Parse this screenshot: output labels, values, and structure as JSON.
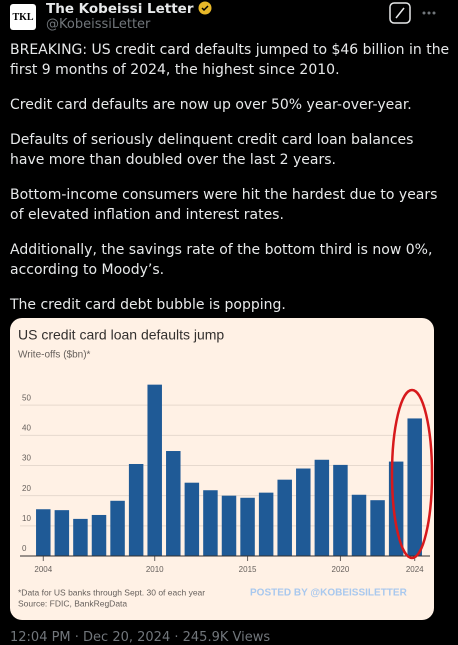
{
  "header": {
    "name": "The Kobeissi Letter",
    "handle": "@KobeissiLetter",
    "avatar": "TKL"
  },
  "paragraphs": [
    "BREAKING: US credit card defaults jumped to $46 billion in the first 9 months of 2024, the highest since 2010.",
    "Credit card defaults are now up over 50% year-over-year.",
    "Defaults of seriously delinquent credit card loan balances have more than doubled over the last 2 years.",
    "Bottom-income consumers were hit the hardest due to years of elevated inflation and interest rates.",
    "Additionally, the savings rate of the bottom third is now 0%, according to Moody’s.",
    "The credit card debt bubble is popping."
  ],
  "chart_data": {
    "type": "bar",
    "title": "US credit card loan defaults jump",
    "subtitle": "Write-offs ($bn)*",
    "categories": [
      "2004",
      null,
      null,
      null,
      null,
      null,
      "2010",
      null,
      null,
      null,
      null,
      "2015",
      null,
      null,
      null,
      null,
      "2020",
      null,
      null,
      null,
      "2024"
    ],
    "values": [
      15.5,
      15.2,
      12.3,
      13.6,
      18.3,
      30.5,
      56.8,
      34.8,
      24.3,
      21.8,
      20,
      19.3,
      21,
      25.3,
      29,
      31.9,
      30.2,
      20.3,
      18.5,
      31.3,
      45.6
    ],
    "color": "#1f5a96",
    "ylim": [
      0,
      60
    ],
    "yticks": [
      0,
      10,
      20,
      30,
      40,
      50
    ],
    "grid": true,
    "notes": [
      "*Data for US banks through Sept. 30 of each year",
      "Source: FDIC, BankRegData"
    ],
    "watermark": "POSTED BY @KOBEISSILETTER"
  },
  "footer": "12:04 PM · Dec 20, 2024 · 245.9K Views"
}
